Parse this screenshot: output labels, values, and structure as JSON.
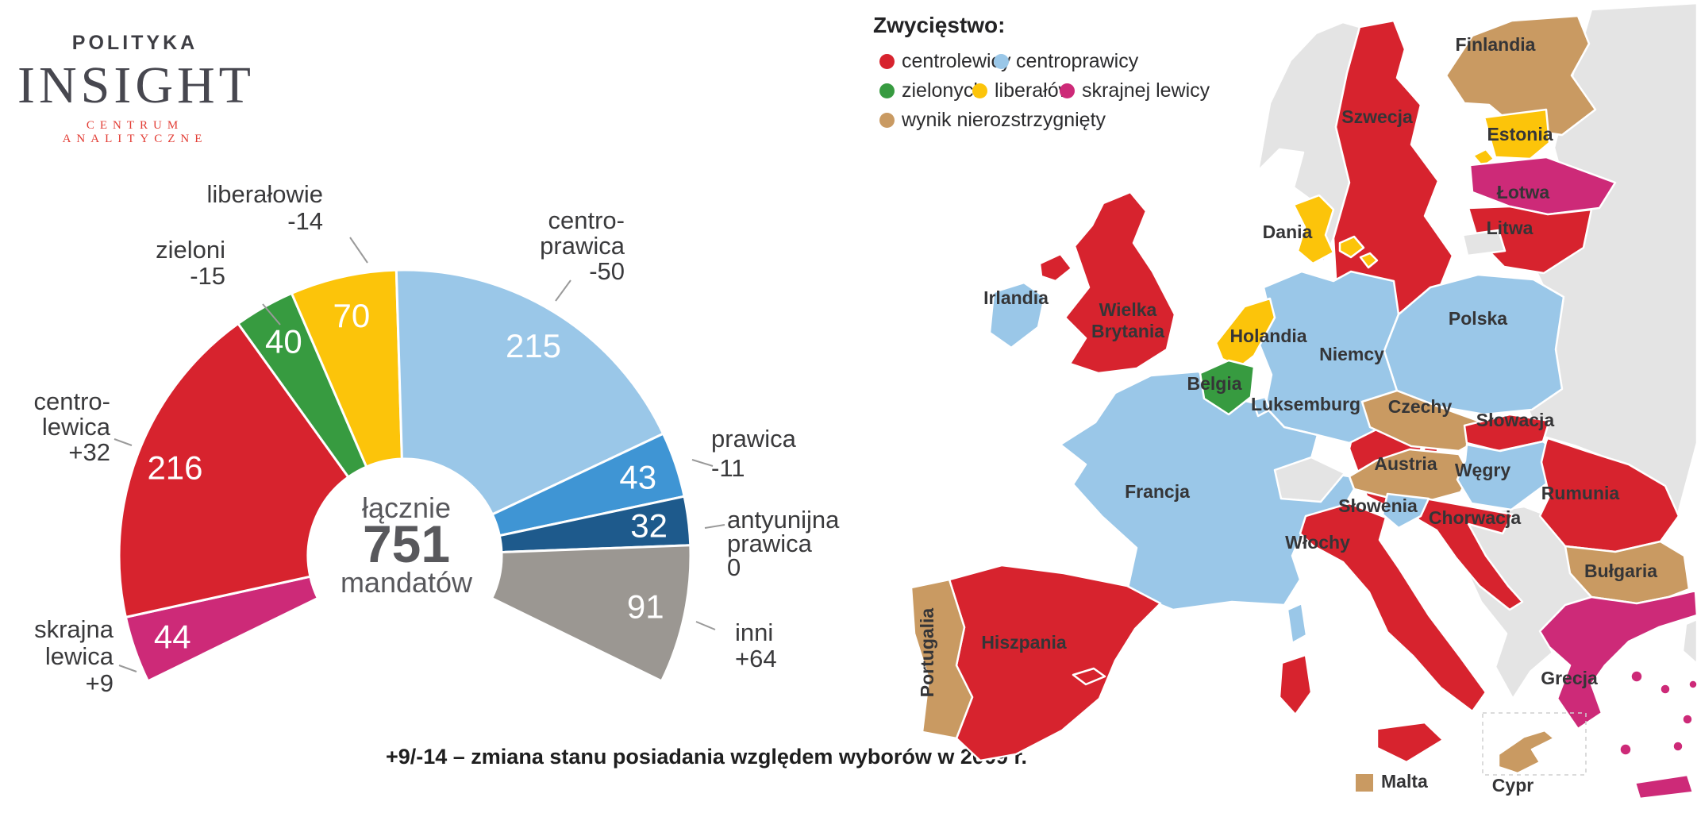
{
  "brand": {
    "line1": "POLITYKA",
    "line2": "INSIGHT",
    "line3": "CENTRUM ANALITYCZNE"
  },
  "chart_data": {
    "type": "donut",
    "title_center": {
      "top": "łącznie",
      "value": "751",
      "bottom": "mandatów"
    },
    "total": 751,
    "arc_degrees": 232,
    "segments": [
      {
        "label": "skrajna lewica",
        "change": "+9",
        "value": 44,
        "color": "#cd2a78"
      },
      {
        "label": "centro-lewica",
        "change": "+32",
        "value": 216,
        "color": "#d7232e"
      },
      {
        "label": "zieloni",
        "change": "-15",
        "value": 40,
        "color": "#379b40"
      },
      {
        "label": "liberałowie",
        "change": "-14",
        "value": 70,
        "color": "#fcc40a"
      },
      {
        "label": "centro-prawica",
        "change": "-50",
        "value": 215,
        "color": "#9ac7e8"
      },
      {
        "label": "prawica",
        "change": "-11",
        "value": 43,
        "color": "#3f95d4"
      },
      {
        "label": "antyunijna prawica",
        "change": "0",
        "value": 32,
        "color": "#1e5a8c"
      },
      {
        "label": "inni",
        "change": "+64",
        "value": 91,
        "color": "#9b9792"
      }
    ],
    "footnote": "+9/-14 – zmiana stanu posiadania względem wyborów w 2009 r."
  },
  "legend": {
    "title": "Zwycięstwo:",
    "items": [
      {
        "label": "centrolewicy",
        "color": "#d7232e"
      },
      {
        "label": "centroprawicy",
        "color": "#9ac7e8"
      },
      {
        "label": "zielonych",
        "color": "#379b40"
      },
      {
        "label": "liberałów",
        "color": "#fcc40a"
      },
      {
        "label": "skrajnej lewicy",
        "color": "#cd2a78"
      },
      {
        "label": "wynik nierozstrzygnięty",
        "color": "#c99a62"
      }
    ]
  },
  "map": {
    "non_eu_color": "#e4e4e4",
    "countries": [
      {
        "id": "finlandia",
        "label": "Finlandia",
        "result": "wynik nierozstrzygnięty"
      },
      {
        "id": "szwecja",
        "label": "Szwecja",
        "result": "centrolewicy"
      },
      {
        "id": "estonia",
        "label": "Estonia",
        "result": "liberałów"
      },
      {
        "id": "lotwa",
        "label": "Łotwa",
        "result": "skrajnej lewicy"
      },
      {
        "id": "litwa",
        "label": "Litwa",
        "result": "centrolewicy"
      },
      {
        "id": "dania",
        "label": "Dania",
        "result": "liberałów"
      },
      {
        "id": "irlandia",
        "label": "Irlandia",
        "result": "centroprawicy"
      },
      {
        "id": "wielka-brytania",
        "label": "Wielka Brytania",
        "result": "centrolewicy"
      },
      {
        "id": "holandia",
        "label": "Holandia",
        "result": "liberałów"
      },
      {
        "id": "belgia",
        "label": "Belgia",
        "result": "zielonych"
      },
      {
        "id": "luksemburg",
        "label": "Luksemburg",
        "result": "centroprawicy"
      },
      {
        "id": "niemcy",
        "label": "Niemcy",
        "result": "centroprawicy"
      },
      {
        "id": "polska",
        "label": "Polska",
        "result": "centroprawicy"
      },
      {
        "id": "czechy",
        "label": "Czechy",
        "result": "wynik nierozstrzygnięty"
      },
      {
        "id": "slowacja",
        "label": "Słowacja",
        "result": "centrolewicy"
      },
      {
        "id": "austria",
        "label": "Austria",
        "result": "wynik nierozstrzygnięty"
      },
      {
        "id": "wegry",
        "label": "Węgry",
        "result": "centroprawicy"
      },
      {
        "id": "francja",
        "label": "Francja",
        "result": "centroprawicy"
      },
      {
        "id": "slowenia",
        "label": "Słowenia",
        "result": "centroprawicy"
      },
      {
        "id": "chorwacja",
        "label": "Chorwacja",
        "result": "centrolewicy"
      },
      {
        "id": "rumunia",
        "label": "Rumunia",
        "result": "centrolewicy"
      },
      {
        "id": "wlochy",
        "label": "Włochy",
        "result": "centrolewicy"
      },
      {
        "id": "bulgaria",
        "label": "Bułgaria",
        "result": "wynik nierozstrzygnięty"
      },
      {
        "id": "hiszpania",
        "label": "Hiszpania",
        "result": "centrolewicy"
      },
      {
        "id": "portugalia",
        "label": "Portugalia",
        "result": "wynik nierozstrzygnięty"
      },
      {
        "id": "grecja",
        "label": "Grecja",
        "result": "skrajnej lewicy"
      },
      {
        "id": "malta",
        "label": "Malta",
        "result": "wynik nierozstrzygnięty"
      },
      {
        "id": "cypr",
        "label": "Cypr",
        "result": "wynik nierozstrzygnięty"
      }
    ]
  }
}
